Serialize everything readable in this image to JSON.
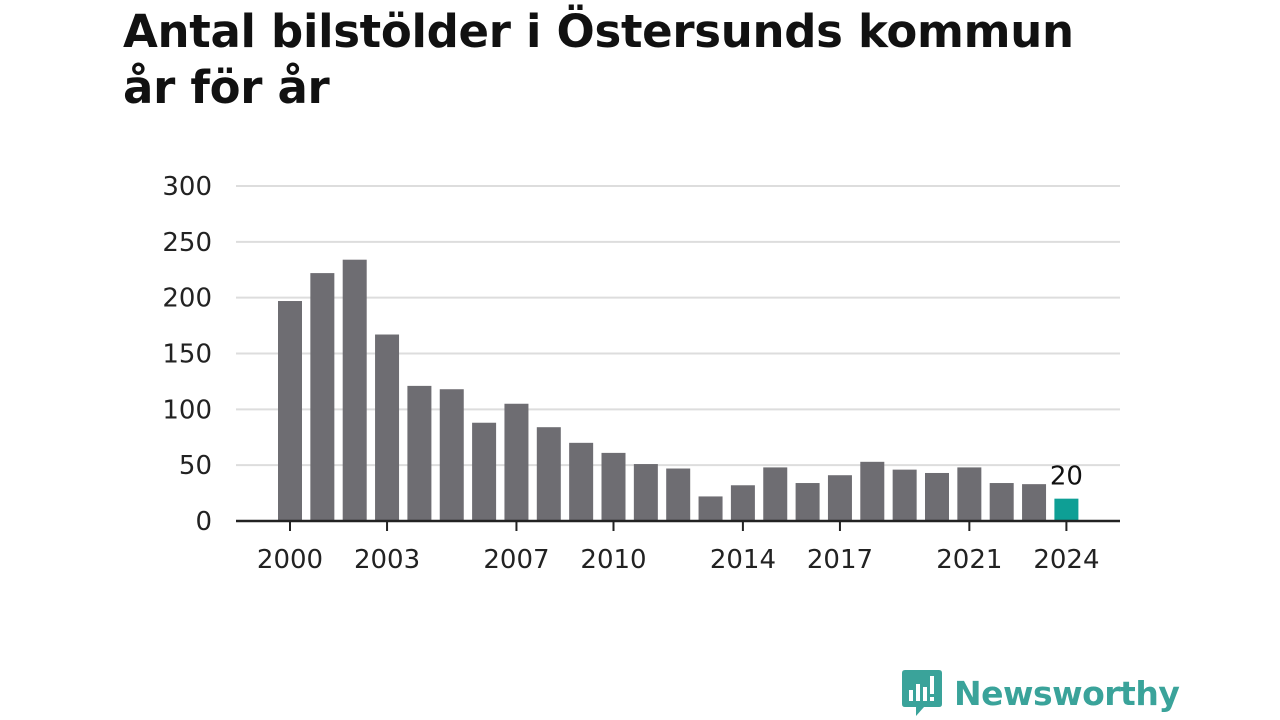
{
  "title_line1": "Antal bilstölder i Östersunds kommun",
  "title_line2": "år för år",
  "brand": {
    "name": "Newsworthy",
    "color": "#3aa39a"
  },
  "colors": {
    "bar": "#6e6d72",
    "highlight": "#0e9f95",
    "grid": "#dddddd",
    "axis": "#222222"
  },
  "chart_data": {
    "type": "bar",
    "categories": [
      "2000",
      "2001",
      "2002",
      "2003",
      "2004",
      "2005",
      "2006",
      "2007",
      "2008",
      "2009",
      "2010",
      "2011",
      "2012",
      "2013",
      "2014",
      "2015",
      "2016",
      "2017",
      "2018",
      "2019",
      "2020",
      "2021",
      "2022",
      "2023",
      "2024"
    ],
    "values": [
      197,
      222,
      234,
      167,
      121,
      118,
      88,
      105,
      84,
      70,
      61,
      51,
      47,
      22,
      32,
      48,
      34,
      41,
      53,
      46,
      43,
      48,
      34,
      33,
      20
    ],
    "x_tick_labels": [
      "2000",
      "2003",
      "2007",
      "2010",
      "2014",
      "2017",
      "2021",
      "2024"
    ],
    "y_ticks": [
      0,
      50,
      100,
      150,
      200,
      250,
      300
    ],
    "ylim": [
      0,
      300
    ],
    "highlight": {
      "category": "2024",
      "label": "20"
    },
    "grid": true,
    "xlabel": "",
    "ylabel": ""
  }
}
